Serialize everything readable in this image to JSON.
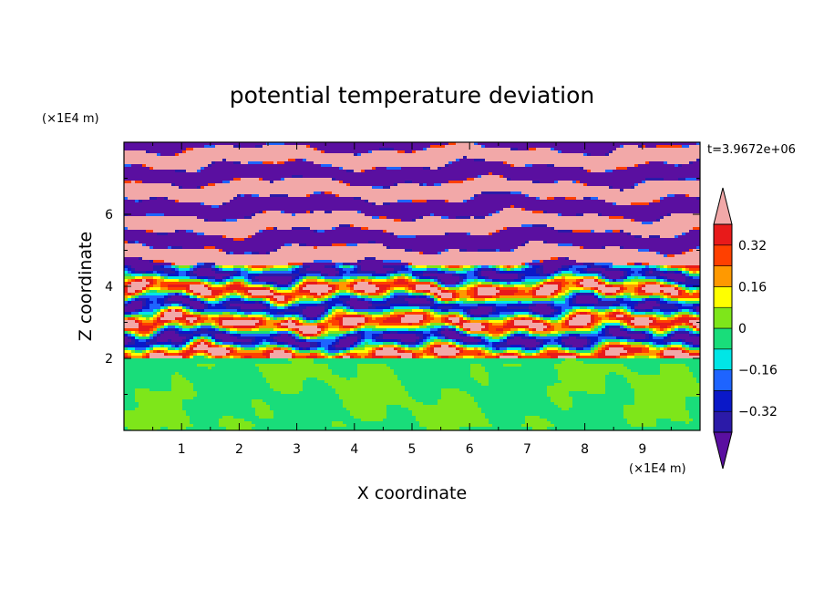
{
  "chart_data": {
    "type": "heatmap",
    "title": "potential temperature deviation",
    "xlabel": "X coordinate",
    "ylabel": "Z coordinate",
    "x_unit": "(×1E4 m)",
    "y_unit": "(×1E4 m)",
    "time_label": "t=3.9672e+06",
    "xlim": [
      0,
      10
    ],
    "ylim": [
      0,
      8
    ],
    "x_ticks": [
      1,
      2,
      3,
      4,
      5,
      6,
      7,
      8,
      9
    ],
    "y_ticks": [
      2,
      4,
      6
    ],
    "colorbar": {
      "levels": [
        -0.4,
        -0.32,
        -0.24,
        -0.16,
        -0.08,
        0,
        0.08,
        0.16,
        0.24,
        0.32,
        0.4
      ],
      "tick_values": [
        0.32,
        0.16,
        0,
        -0.16,
        -0.32
      ],
      "tick_labels": [
        "0.32",
        "0.16",
        "0",
        "−0.16",
        "−0.32"
      ],
      "colors": [
        "#5a0fa0",
        "#2b1aa8",
        "#0a18c8",
        "#1e64ff",
        "#00e6e6",
        "#19dd7a",
        "#7ee61a",
        "#ffff00",
        "#ff9900",
        "#ff4000",
        "#e81a1a",
        "#f2a8a8"
      ],
      "extend": "both"
    },
    "structure": {
      "lower_layer": "0 to 2",
      "layered_region": "2 to 8"
    }
  }
}
